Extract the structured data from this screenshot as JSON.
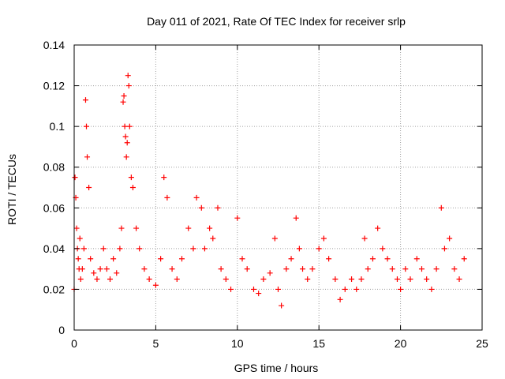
{
  "chart_data": {
    "type": "scatter",
    "title": "Day 011 of 2021, Rate Of TEC Index for receiver srlp",
    "xlabel": "GPS time / hours",
    "ylabel": "ROTI / TECUs",
    "xlim": [
      0,
      25
    ],
    "ylim": [
      0,
      0.14
    ],
    "xticks": [
      0,
      5,
      10,
      15,
      20,
      25
    ],
    "xtick_labels": [
      "0",
      "5",
      "10",
      "15",
      "20",
      "25"
    ],
    "yticks": [
      0,
      0.02,
      0.04,
      0.06,
      0.08,
      0.1,
      0.12,
      0.14
    ],
    "ytick_labels": [
      "0",
      "0.02",
      "0.04",
      "0.06",
      "0.08",
      "0.1",
      "0.12",
      "0.14"
    ],
    "grid": true,
    "marker": "+",
    "color": "#ff0000",
    "series": [
      {
        "name": "ROTI",
        "x": [
          0.0,
          0.05,
          0.1,
          0.15,
          0.2,
          0.25,
          0.3,
          0.35,
          0.4,
          0.5,
          0.6,
          0.7,
          0.75,
          0.8,
          0.9,
          1.0,
          1.2,
          1.4,
          1.6,
          1.8,
          2.0,
          2.2,
          2.4,
          2.6,
          2.8,
          2.9,
          3.0,
          3.05,
          3.1,
          3.15,
          3.2,
          3.25,
          3.3,
          3.35,
          3.4,
          3.5,
          3.6,
          3.8,
          4.0,
          4.3,
          4.6,
          5.0,
          5.3,
          5.5,
          5.7,
          6.0,
          6.3,
          6.6,
          7.0,
          7.3,
          7.5,
          7.8,
          8.0,
          8.3,
          8.5,
          8.8,
          9.0,
          9.3,
          9.6,
          10.0,
          10.3,
          10.6,
          11.0,
          11.3,
          11.6,
          12.0,
          12.3,
          12.5,
          12.7,
          13.0,
          13.3,
          13.6,
          13.8,
          14.0,
          14.3,
          14.6,
          15.0,
          15.3,
          15.6,
          16.0,
          16.3,
          16.6,
          17.0,
          17.3,
          17.6,
          17.8,
          18.0,
          18.3,
          18.6,
          18.9,
          19.2,
          19.5,
          19.8,
          20.0,
          20.3,
          20.6,
          21.0,
          21.3,
          21.6,
          21.9,
          22.2,
          22.5,
          22.7,
          23.0,
          23.3,
          23.6,
          23.9
        ],
        "y": [
          0.02,
          0.075,
          0.065,
          0.05,
          0.04,
          0.035,
          0.03,
          0.045,
          0.025,
          0.03,
          0.04,
          0.113,
          0.1,
          0.085,
          0.07,
          0.035,
          0.028,
          0.025,
          0.03,
          0.04,
          0.03,
          0.025,
          0.035,
          0.028,
          0.04,
          0.05,
          0.112,
          0.115,
          0.1,
          0.095,
          0.085,
          0.092,
          0.125,
          0.12,
          0.1,
          0.075,
          0.07,
          0.05,
          0.04,
          0.03,
          0.025,
          0.022,
          0.035,
          0.075,
          0.065,
          0.03,
          0.025,
          0.035,
          0.05,
          0.04,
          0.065,
          0.06,
          0.04,
          0.05,
          0.045,
          0.06,
          0.03,
          0.025,
          0.02,
          0.055,
          0.035,
          0.03,
          0.02,
          0.018,
          0.025,
          0.028,
          0.045,
          0.02,
          0.012,
          0.03,
          0.035,
          0.055,
          0.04,
          0.03,
          0.025,
          0.03,
          0.04,
          0.045,
          0.035,
          0.025,
          0.015,
          0.02,
          0.025,
          0.02,
          0.025,
          0.045,
          0.03,
          0.035,
          0.05,
          0.04,
          0.035,
          0.03,
          0.025,
          0.02,
          0.03,
          0.025,
          0.035,
          0.03,
          0.025,
          0.02,
          0.03,
          0.06,
          0.04,
          0.045,
          0.03,
          0.025,
          0.035
        ]
      }
    ]
  }
}
